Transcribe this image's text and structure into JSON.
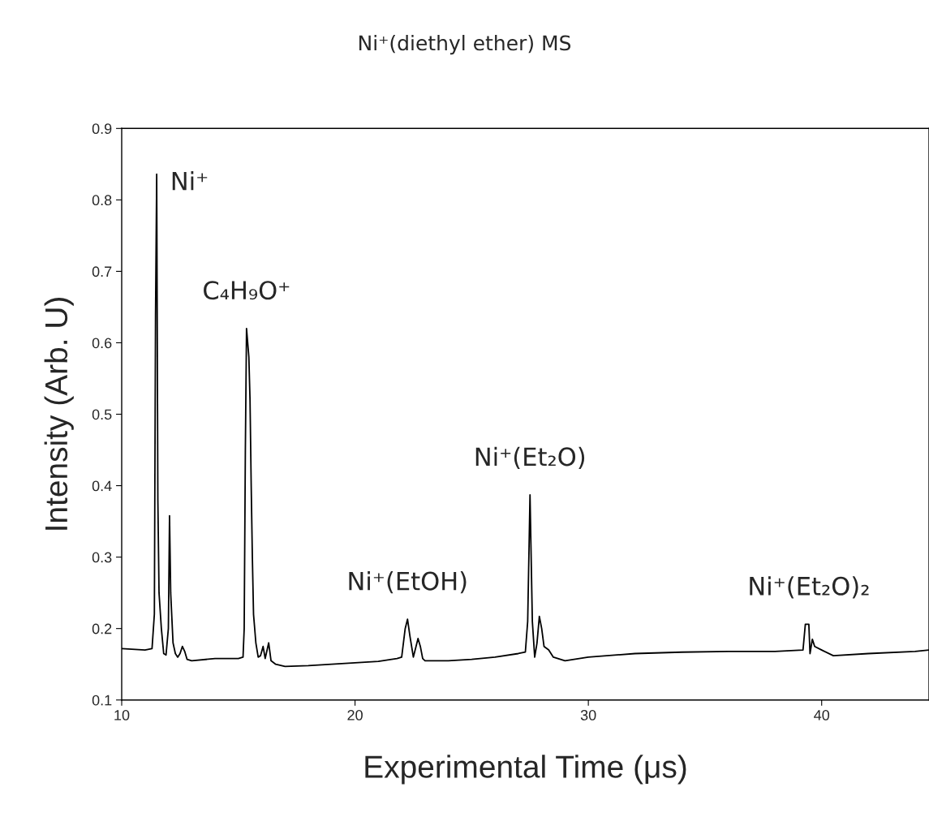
{
  "chart_data": {
    "type": "line",
    "title": "Ni⁺(diethyl ether) MS",
    "xlabel": "Experimental Time (μs)",
    "ylabel": "Intensity (Arb. U)",
    "xlim": [
      10,
      44.6
    ],
    "xticks": [
      10,
      20,
      30,
      40
    ],
    "ylim": [
      0.1,
      0.9
    ],
    "yticks": [
      0.1,
      0.2,
      0.3,
      0.4,
      0.5,
      0.6,
      0.7,
      0.8,
      0.9
    ],
    "grid": false,
    "marker": "none",
    "line_style": "solid",
    "series": [
      {
        "color": "#000000",
        "x": [
          10.0,
          11.0,
          11.3,
          11.4,
          11.45,
          11.5,
          11.55,
          11.6,
          11.7,
          11.8,
          11.9,
          12.0,
          12.05,
          12.1,
          12.2,
          12.3,
          12.4,
          12.5,
          12.6,
          12.7,
          12.8,
          13.0,
          14.0,
          15.0,
          15.2,
          15.25,
          15.3,
          15.35,
          15.45,
          15.5,
          15.55,
          15.6,
          15.65,
          15.75,
          15.85,
          15.95,
          16.06,
          16.15,
          16.3,
          16.4,
          16.6,
          17.0,
          18.0,
          19.0,
          20.0,
          21.0,
          21.8,
          22.0,
          22.15,
          22.25,
          22.35,
          22.5,
          22.7,
          22.8,
          22.9,
          23.0,
          24.0,
          25.0,
          26.0,
          27.0,
          27.3,
          27.4,
          27.5,
          27.6,
          27.7,
          27.8,
          27.9,
          28.0,
          28.1,
          28.3,
          28.5,
          29.0,
          30.0,
          32.0,
          34.0,
          36.0,
          38.0,
          39.2,
          39.3,
          39.45,
          39.5,
          39.6,
          39.7,
          40.0,
          40.5,
          42.0,
          44.0,
          44.6
        ],
        "values": [
          0.172,
          0.17,
          0.172,
          0.22,
          0.64,
          0.836,
          0.38,
          0.25,
          0.2,
          0.165,
          0.163,
          0.2,
          0.358,
          0.25,
          0.18,
          0.165,
          0.16,
          0.165,
          0.175,
          0.168,
          0.157,
          0.155,
          0.158,
          0.158,
          0.16,
          0.2,
          0.45,
          0.62,
          0.58,
          0.52,
          0.4,
          0.3,
          0.22,
          0.18,
          0.16,
          0.162,
          0.175,
          0.158,
          0.18,
          0.155,
          0.15,
          0.147,
          0.148,
          0.15,
          0.152,
          0.154,
          0.158,
          0.16,
          0.2,
          0.213,
          0.19,
          0.16,
          0.186,
          0.175,
          0.158,
          0.155,
          0.155,
          0.157,
          0.16,
          0.165,
          0.167,
          0.21,
          0.387,
          0.21,
          0.16,
          0.18,
          0.217,
          0.2,
          0.175,
          0.17,
          0.16,
          0.155,
          0.16,
          0.165,
          0.167,
          0.168,
          0.168,
          0.17,
          0.206,
          0.206,
          0.165,
          0.185,
          0.175,
          0.17,
          0.162,
          0.165,
          0.168,
          0.17
        ]
      }
    ],
    "annotations": [
      {
        "text": "Ni⁺",
        "x": 11.5,
        "y": 0.836
      },
      {
        "text": "C₄H₉O⁺",
        "x": 15.35,
        "y": 0.62
      },
      {
        "text": "Ni⁺(EtOH)",
        "x": 22.25,
        "y": 0.213
      },
      {
        "text": "Ni⁺(Et₂O)",
        "x": 27.5,
        "y": 0.387
      },
      {
        "text": "Ni⁺(Et₂O)₂",
        "x": 39.45,
        "y": 0.206
      }
    ]
  }
}
